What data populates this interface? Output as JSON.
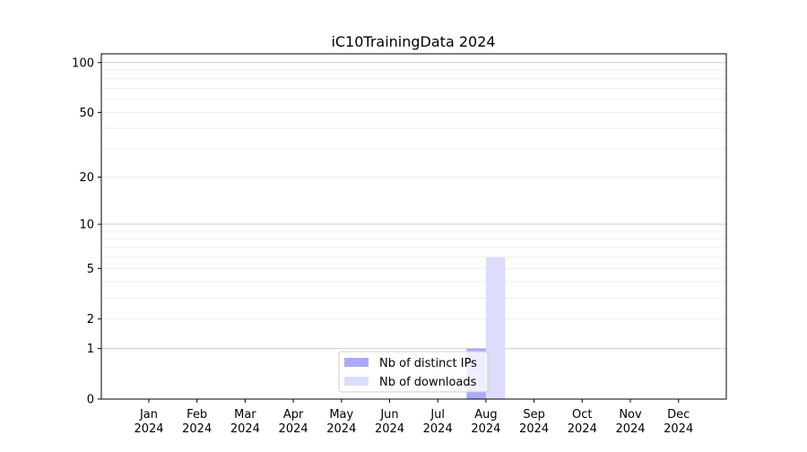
{
  "chart_data": {
    "type": "bar",
    "title": "iC10TrainingData 2024",
    "xlabel": "",
    "ylabel": "",
    "y_scale": "log10(1+y)",
    "ylim": [
      0,
      113
    ],
    "y_ticks": [
      0,
      1,
      2,
      5,
      10,
      20,
      50,
      100
    ],
    "y_minor_grid": [
      3,
      4,
      6,
      7,
      8,
      9,
      30,
      40,
      60,
      70,
      80,
      90
    ],
    "grid": true,
    "legend_position": "lower center",
    "categories": [
      [
        "Jan",
        "2024"
      ],
      [
        "Feb",
        "2024"
      ],
      [
        "Mar",
        "2024"
      ],
      [
        "Apr",
        "2024"
      ],
      [
        "May",
        "2024"
      ],
      [
        "Jun",
        "2024"
      ],
      [
        "Jul",
        "2024"
      ],
      [
        "Aug",
        "2024"
      ],
      [
        "Sep",
        "2024"
      ],
      [
        "Oct",
        "2024"
      ],
      [
        "Nov",
        "2024"
      ],
      [
        "Dec",
        "2024"
      ]
    ],
    "series": [
      {
        "name": "Nb of distinct IPs",
        "color": "#aaaaf8",
        "values": [
          0,
          0,
          0,
          0,
          0,
          0,
          0,
          1,
          0,
          0,
          0,
          0
        ]
      },
      {
        "name": "Nb of downloads",
        "color": "#dcdcfc",
        "values": [
          0,
          0,
          0,
          0,
          0,
          0,
          0,
          6,
          0,
          0,
          0,
          0
        ]
      }
    ]
  }
}
